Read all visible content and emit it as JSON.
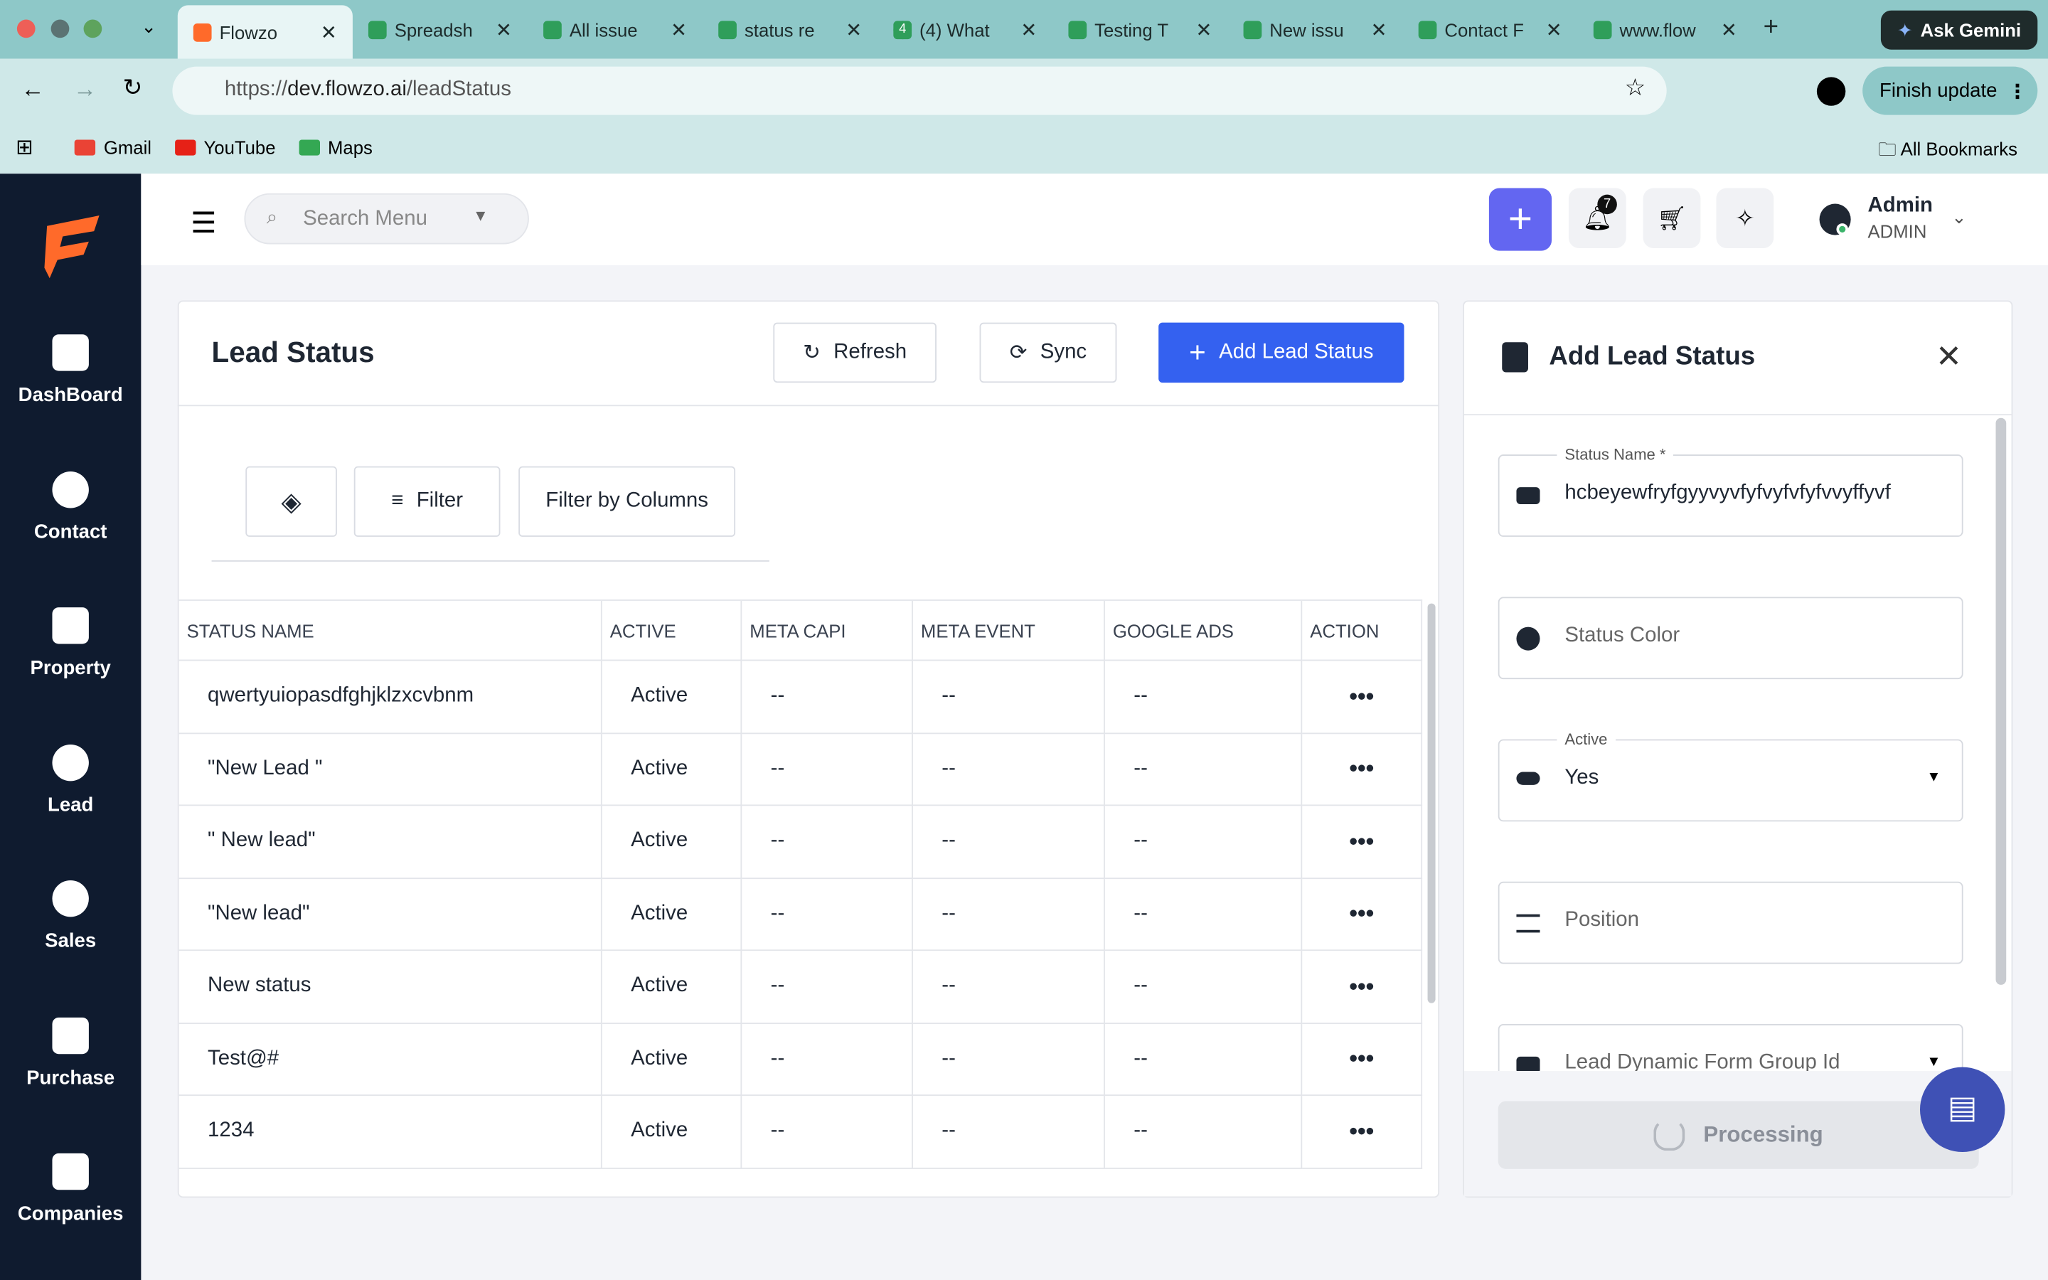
{
  "browser": {
    "tabs": [
      "Flowzo",
      "Spreadsh",
      "All issue",
      "status re",
      "(4) What",
      "Testing T",
      "New issu",
      "Contact F",
      "www.flow"
    ],
    "tab_badge": "4",
    "gemini": "Ask Gemini",
    "url_scheme": "https://",
    "url_host": "dev.flowzo.ai",
    "url_path": "/leadStatus",
    "finish_update": "Finish update",
    "bookmarks": [
      "Gmail",
      "YouTube",
      "Maps"
    ],
    "all_bookmarks": "All Bookmarks"
  },
  "sidebar": [
    "DashBoard",
    "Contact",
    "Property",
    "Lead",
    "Sales",
    "Purchase",
    "Companies"
  ],
  "header": {
    "search": "Search Menu",
    "notifications": "7",
    "user_name": "Admin",
    "user_role": "ADMIN"
  },
  "panel": {
    "title": "Lead Status",
    "refresh": "Refresh",
    "sync": "Sync",
    "add": "Add Lead Status",
    "filter": "Filter",
    "filter_columns": "Filter by Columns",
    "table": {
      "columns": [
        "STATUS NAME",
        "ACTIVE",
        "META CAPI",
        "META EVENT",
        "GOOGLE ADS",
        "ACTION"
      ],
      "rows": [
        [
          "qwertyuiopasdfghjklzxcvbnm",
          "Active",
          "--",
          "--",
          "--"
        ],
        [
          "\"New Lead \"",
          "Active",
          "--",
          "--",
          "--"
        ],
        [
          "\" New lead\"",
          "Active",
          "--",
          "--",
          "--"
        ],
        [
          "\"New lead\"",
          "Active",
          "--",
          "--",
          "--"
        ],
        [
          "New status",
          "Active",
          "--",
          "--",
          "--"
        ],
        [
          "Test@#",
          "Active",
          "--",
          "--",
          "--"
        ],
        [
          "1234",
          "Active",
          "--",
          "--",
          "--"
        ]
      ]
    }
  },
  "drawer": {
    "title": "Add Lead Status",
    "status_name_label": "Status Name *",
    "status_name_value": "hcbeyewfryfgyyvyvfyfvyfvfyfvvyffyvf",
    "status_color": "Status Color",
    "active_label": "Active",
    "active_value": "Yes",
    "position": "Position",
    "form_group": "Lead Dynamic Form Group Id",
    "processing": "Processing"
  }
}
